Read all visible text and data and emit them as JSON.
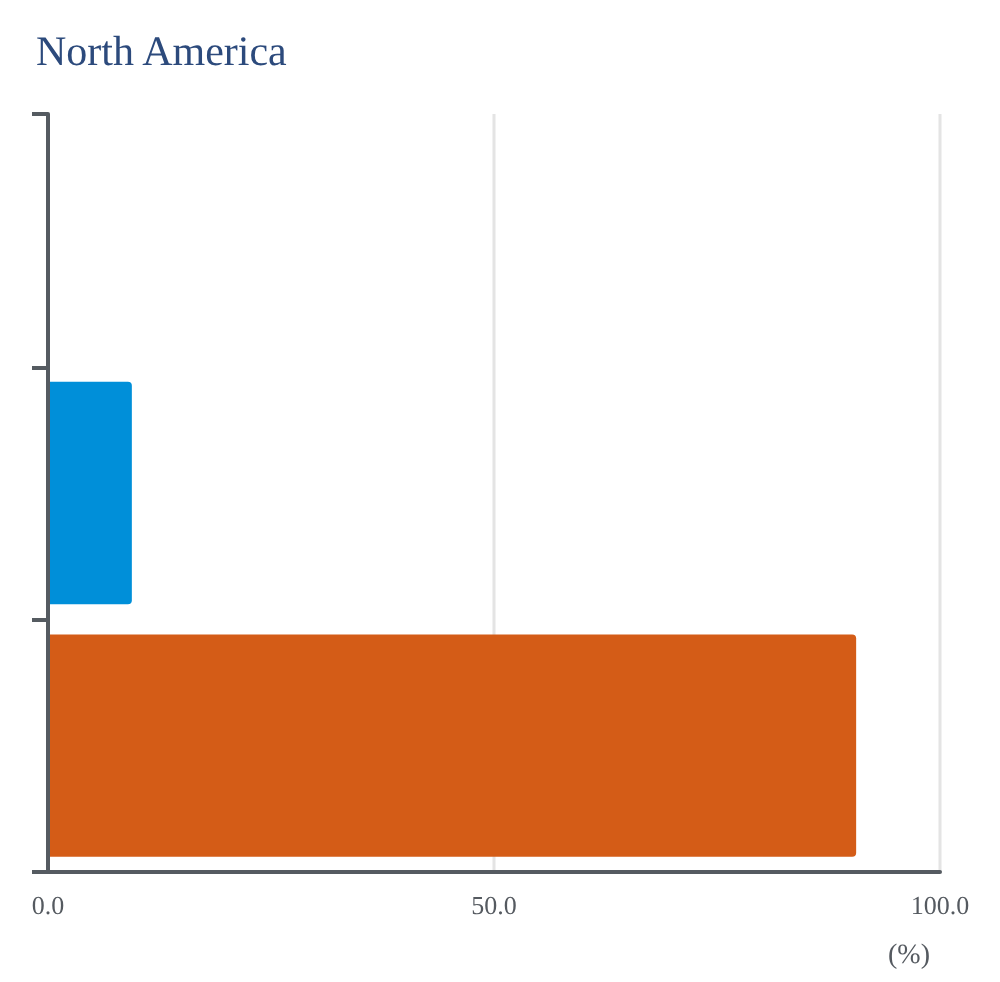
{
  "chart_data": {
    "type": "bar",
    "orientation": "horizontal",
    "title": "North America",
    "xlabel": "(%)",
    "categories": [
      null,
      null,
      null
    ],
    "values": [
      null,
      9.4,
      90.6
    ],
    "colors": [
      null,
      "#008fd9",
      "#d45c17"
    ],
    "xlim": [
      0,
      100
    ],
    "xticks": [
      {
        "value": 0,
        "label": "0.0"
      },
      {
        "value": 50,
        "label": "50.0"
      },
      {
        "value": 100,
        "label": "100.0"
      }
    ],
    "grid": "x",
    "tick_labels": "x"
  }
}
